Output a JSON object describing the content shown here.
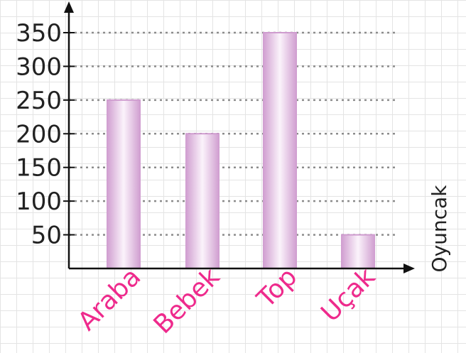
{
  "chart_data": {
    "type": "bar",
    "categories": [
      "Araba",
      "Bebek",
      "Top",
      "Uçak"
    ],
    "values": [
      250,
      200,
      350,
      50
    ],
    "ylabel": "",
    "xlabel": "Oyuncak",
    "ylim": [
      0,
      350
    ],
    "yticks": [
      "50",
      "100",
      "150",
      "200",
      "250",
      "300",
      "350"
    ],
    "grid": "dotted horizontal",
    "colors": {
      "bar_edge": "#cf9ccf",
      "bar_mid": "#fbf3fb",
      "category_label": "#ee2a8c",
      "axis": "#111111",
      "gridline": "#8c8c8c"
    }
  }
}
